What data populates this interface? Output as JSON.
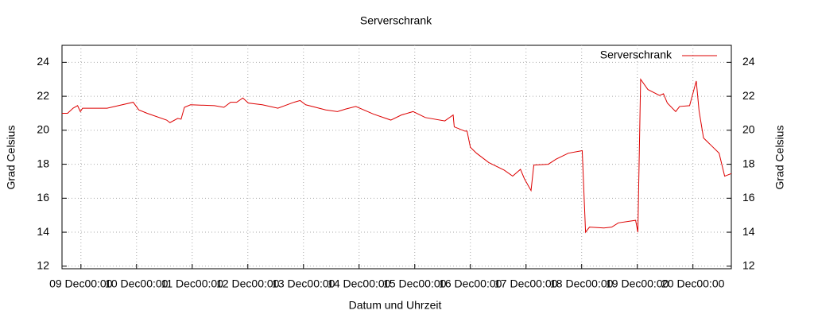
{
  "chart_data": {
    "type": "line",
    "title": "Serverschrank",
    "x_label": "Datum und Uhrzeit",
    "y_label": "Grad Celsius",
    "y2_label": "Grad Celsius",
    "x": [
      -0.34,
      -0.24,
      -0.14,
      -0.06,
      -0.01,
      0.03,
      0.19,
      0.47,
      0.94,
      1.04,
      1.19,
      1.54,
      1.6,
      1.74,
      1.8,
      1.86,
      1.97,
      2.4,
      2.57,
      2.69,
      2.8,
      2.91,
      3.01,
      3.26,
      3.54,
      3.83,
      3.94,
      4.04,
      4.4,
      4.61,
      4.76,
      4.94,
      5.26,
      5.57,
      5.76,
      5.97,
      6.19,
      6.54,
      6.69,
      6.71,
      6.9,
      6.94,
      7.0,
      7.11,
      7.33,
      7.61,
      7.76,
      7.9,
      7.97,
      8.09,
      8.14,
      8.4,
      8.54,
      8.76,
      9.01,
      9.07,
      9.14,
      9.4,
      9.54,
      9.66,
      9.97,
      10.01,
      10.06,
      10.19,
      10.4,
      10.47,
      10.54,
      10.69,
      10.76,
      10.94,
      11.06,
      11.11,
      11.19,
      11.33,
      11.47,
      11.57,
      11.69
    ],
    "series": [
      {
        "name": "Serverschrank",
        "color": "#dd0000",
        "values": [
          21.0,
          21.0,
          21.3,
          21.45,
          21.1,
          21.3,
          21.3,
          21.3,
          21.65,
          21.2,
          21.0,
          20.6,
          20.45,
          20.7,
          20.65,
          21.35,
          21.5,
          21.45,
          21.35,
          21.65,
          21.65,
          21.9,
          21.6,
          21.5,
          21.3,
          21.65,
          21.75,
          21.5,
          21.2,
          21.1,
          21.25,
          21.4,
          20.95,
          20.6,
          20.9,
          21.1,
          20.75,
          20.55,
          20.9,
          20.2,
          19.95,
          19.95,
          19.0,
          18.65,
          18.1,
          17.65,
          17.3,
          17.7,
          17.15,
          16.45,
          17.95,
          18.0,
          18.3,
          18.65,
          18.8,
          14.0,
          14.3,
          14.25,
          14.3,
          14.55,
          14.7,
          14.0,
          23.0,
          22.4,
          22.05,
          22.15,
          21.6,
          21.1,
          21.4,
          21.45,
          22.9,
          21.15,
          19.55,
          19.1,
          18.65,
          17.3,
          17.45
        ]
      }
    ],
    "xlim": [
      -0.34,
      11.69
    ],
    "xticks": [
      {
        "value": 0,
        "label": "09 Dec00:00"
      },
      {
        "value": 1,
        "label": "10 Dec00:00"
      },
      {
        "value": 2,
        "label": "11 Dec00:00"
      },
      {
        "value": 3,
        "label": "12 Dec00:00"
      },
      {
        "value": 4,
        "label": "13 Dec00:00"
      },
      {
        "value": 5,
        "label": "14 Dec00:00"
      },
      {
        "value": 6,
        "label": "15 Dec00:00"
      },
      {
        "value": 7,
        "label": "16 Dec00:00"
      },
      {
        "value": 8,
        "label": "17 Dec00:00"
      },
      {
        "value": 9,
        "label": "18 Dec00:00"
      },
      {
        "value": 10,
        "label": "19 Dec00:00"
      },
      {
        "value": 11,
        "label": "20 Dec00:00"
      }
    ],
    "ylim": [
      11.85,
      25
    ],
    "yticks": [
      12,
      14,
      16,
      18,
      20,
      22,
      24
    ],
    "y2lim": [
      11.85,
      25
    ],
    "y2ticks": [
      12,
      14,
      16,
      18,
      20,
      22,
      24
    ],
    "grid": true,
    "legend": "top-right"
  }
}
